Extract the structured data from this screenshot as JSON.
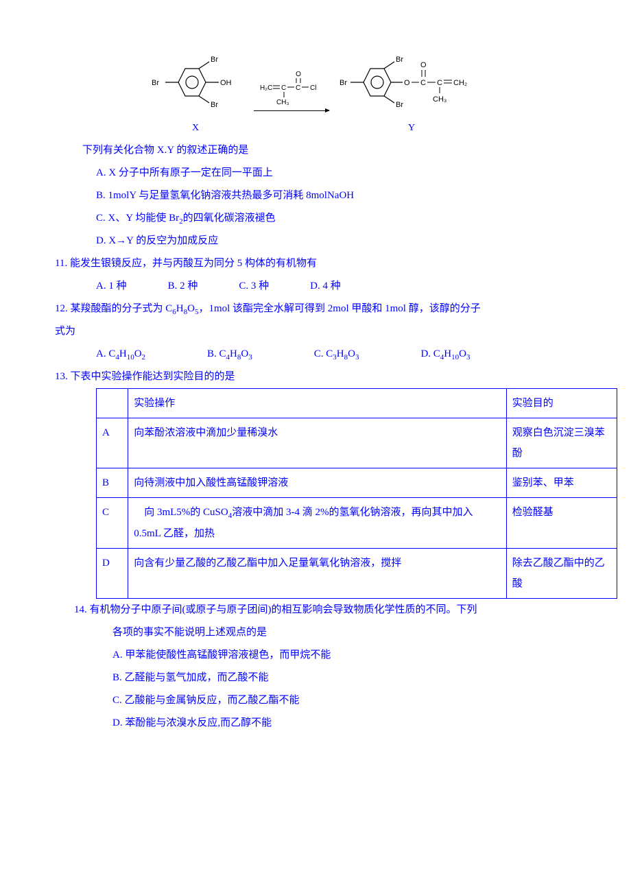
{
  "reaction": {
    "x_label": "X",
    "y_label": "Y",
    "reagent_top_html": "O<br>‖<br>H<sub>2</sub>C＝C—C—Cl",
    "reagent_bot_html": "｜<br>CH<sub>3</sub>"
  },
  "q10": {
    "lead": "下列有关化合物 X.Y 的叙述正确的是",
    "A": "A. X 分子中所有原子一定在同一平面上",
    "B": "B. 1molY 与足量氢氧化钠溶液共热最多可消耗 8molNaOH",
    "C_html": "C. X、Y 均能使 Br<sub>2</sub>的四氧化碳溶液褪色",
    "D": "D. X→Y 的反空为加成反应"
  },
  "q11": {
    "stem": "11. 能发生银镜反应，并与丙酸互为同分 5 构体的有机物有",
    "A": "A. 1 种",
    "B": "B. 2 种",
    "C": "C. 3 种",
    "D": "D. 4 种"
  },
  "q12": {
    "stem_html": "12. 某羧酸酯的分子式为 C<sub>6</sub>H<sub>8</sub>O<sub>5</sub>，1mol 该酯完全水解可得到 2mol 甲酸和 1mol 醇，该醇的分子",
    "stem2": "式为",
    "A_html": "A. C<sub>4</sub>H<sub>10</sub>O<sub>2</sub>",
    "B_html": "B. C<sub>4</sub>H<sub>8</sub>O<sub>3</sub>",
    "C_html": "C. C<sub>3</sub>H<sub>8</sub>O<sub>3</sub>",
    "D_html": "D. C<sub>4</sub>H<sub>10</sub>O<sub>3</sub>"
  },
  "q13": {
    "stem": "13. 下表中实验操作能达到实险目的的是",
    "header_op": "实验操作",
    "header_goal": "实验目的",
    "rows": [
      {
        "k": "A",
        "op": "向苯酚浓溶液中滴加少量稀溴水",
        "goal": "观察白色沉淀三溴苯酚"
      },
      {
        "k": "B",
        "op": "向待测液中加入酸性高锰酸钾溶液",
        "goal": "鉴别苯、甲苯"
      },
      {
        "k": "C",
        "op_html": "　向 3mL5%的 CuSO<sub>4</sub>溶液中滴加 3-4 滴 2%的氢氧化钠溶液，再向其中加入 0.5mL 乙醛，加热",
        "goal": "检验醛基"
      },
      {
        "k": "D",
        "op": "向含有少量乙酸的乙酸乙酯中加入足量氧氧化钠溶液，搅拌",
        "goal": "除去乙酸乙酯中的乙酸"
      }
    ]
  },
  "q14": {
    "stem1": "14. 有机物分子中原子间(或原子与原子团间)的相互影响会导致物质化学性质的不同。下列",
    "stem2": "各项的事实不能说明上述观点的是",
    "A": "A. 甲苯能使酸性高锰酸钾溶液褪色，而甲烷不能",
    "B": "B. 乙醛能与氢气加成，而乙酸不能",
    "C": "C. 乙酸能与金属钠反应，而乙酸乙酯不能",
    "D": "D. 苯酚能与浓溴水反应,而乙醇不能"
  }
}
